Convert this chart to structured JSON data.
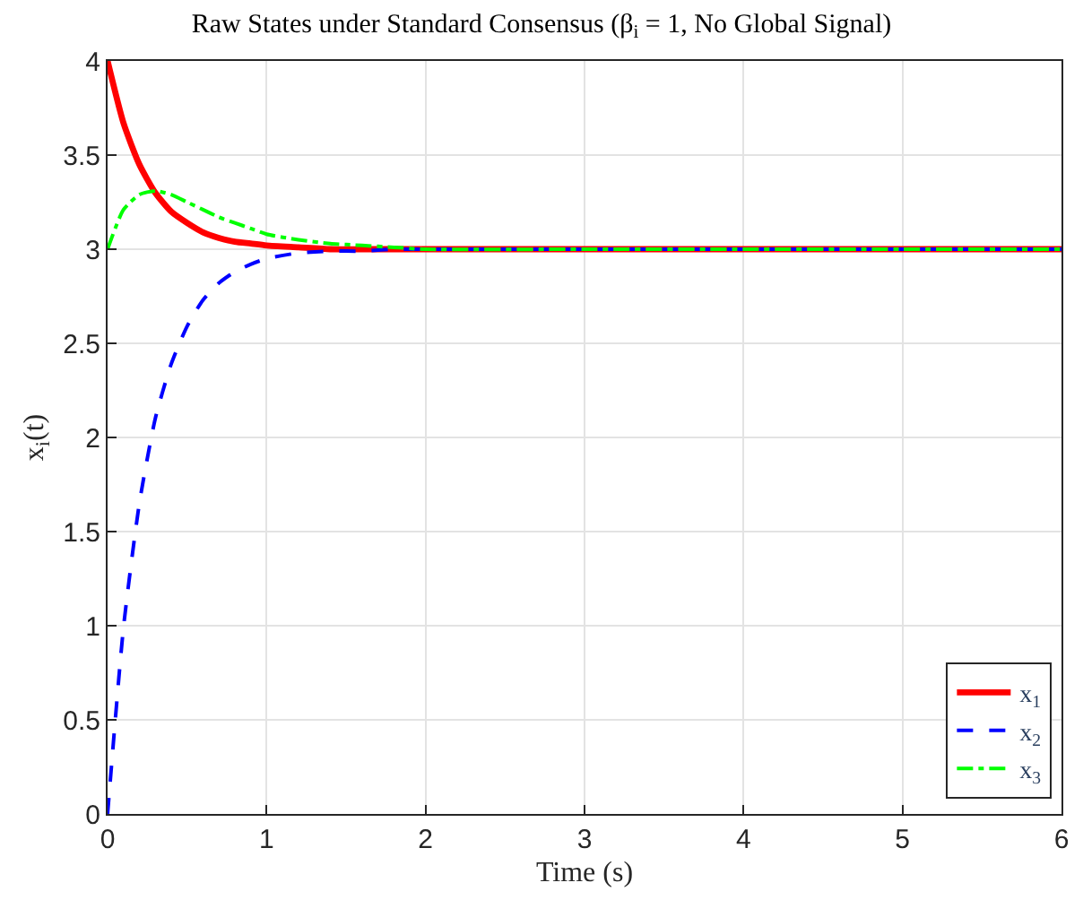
{
  "chart_data": {
    "type": "line",
    "title": "Raw States under Standard Consensus (β$_{i}$ = 1, No Global Signal)",
    "xlabel": "Time (s)",
    "ylabel": "x$_{i}$(t)",
    "x": [
      0,
      0.1,
      0.2,
      0.3,
      0.4,
      0.5,
      0.6,
      0.7,
      0.8,
      0.9,
      1.0,
      1.2,
      1.4,
      1.6,
      1.8,
      2,
      3,
      4,
      5,
      6
    ],
    "series": [
      {
        "name": "x$_{1}$",
        "color": "#ff0000",
        "line_style": "solid",
        "values": [
          4,
          3.67,
          3.45,
          3.3,
          3.2,
          3.14,
          3.09,
          3.06,
          3.04,
          3.03,
          3.02,
          3.01,
          3.0,
          3.0,
          3,
          3,
          3,
          3,
          3,
          3
        ]
      },
      {
        "name": "x$_{2}$",
        "color": "#0000ff",
        "line_style": "dashed",
        "values": [
          0,
          0.99,
          1.65,
          2.1,
          2.39,
          2.59,
          2.73,
          2.82,
          2.88,
          2.92,
          2.95,
          2.98,
          2.99,
          2.99,
          3,
          3,
          3,
          3,
          3,
          3
        ]
      },
      {
        "name": "x$_{3}$",
        "color": "#00ff00",
        "line_style": "dashdot",
        "values": [
          3,
          3.21,
          3.29,
          3.31,
          3.29,
          3.25,
          3.21,
          3.17,
          3.14,
          3.11,
          3.08,
          3.05,
          3.03,
          3.02,
          3.01,
          3.0,
          3,
          3,
          3,
          3
        ]
      }
    ],
    "xlim": [
      0,
      6
    ],
    "xticks": [
      0,
      1,
      2,
      3,
      4,
      5,
      6
    ],
    "ylim": [
      0,
      4
    ],
    "yticks": [
      0,
      0.5,
      1,
      1.5,
      2,
      2.5,
      3,
      3.5,
      4
    ],
    "grid": true,
    "legend": "bottom right",
    "marker": "none"
  }
}
